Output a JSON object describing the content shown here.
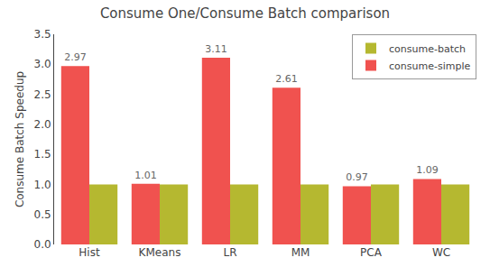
{
  "chart_data": {
    "type": "bar",
    "title": "Consume One/Consume Batch comparison",
    "ylabel": "Consume Batch Speedup",
    "categories": [
      "Hist",
      "KMeans",
      "LR",
      "MM",
      "PCA",
      "WC"
    ],
    "series": [
      {
        "name": "consume-simple",
        "color": "#f0524f",
        "values": [
          2.97,
          1.01,
          3.11,
          2.61,
          0.97,
          1.09
        ],
        "data_labels": true
      },
      {
        "name": "consume-batch",
        "color": "#b5b830",
        "values": [
          1.0,
          1.0,
          1.0,
          1.0,
          1.0,
          1.0
        ]
      }
    ],
    "ylim": [
      0.0,
      3.5
    ],
    "yticks": [
      {
        "value": 0,
        "label": "0.0"
      },
      0.5,
      {
        "value": 1,
        "label": "1.0"
      },
      1.5,
      {
        "value": 2,
        "label": "2.0"
      },
      2.5,
      {
        "value": 3,
        "label": "3.0"
      },
      3.5
    ],
    "grid": false,
    "legend": "upper right"
  }
}
